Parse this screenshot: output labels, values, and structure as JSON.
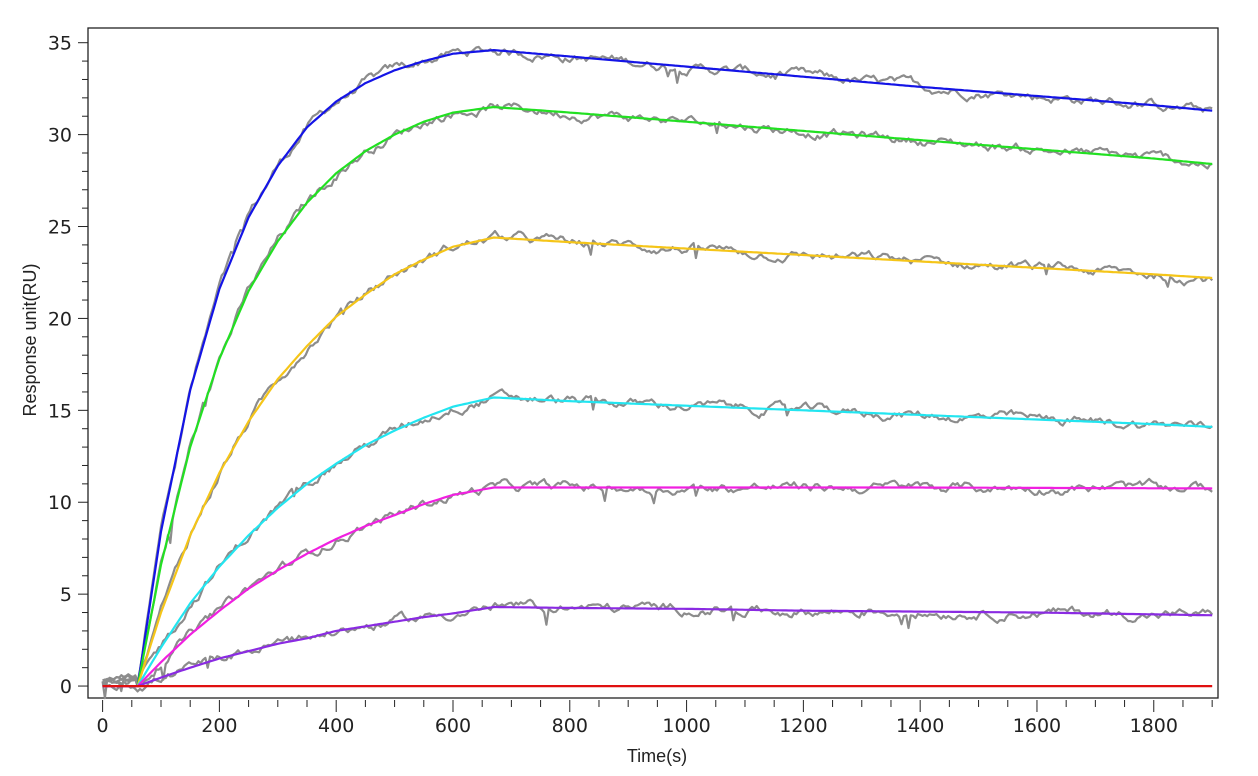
{
  "chart_data": {
    "type": "line",
    "title": "",
    "xlabel": "Time(s)",
    "ylabel": "Response unit(RU)",
    "xlim": [
      -25,
      1910
    ],
    "ylim": [
      -0.65,
      35.8
    ],
    "xticks": [
      0,
      200,
      400,
      600,
      800,
      1000,
      1200,
      1400,
      1600,
      1800
    ],
    "yticks": [
      0,
      5,
      10,
      15,
      20,
      25,
      30,
      35
    ],
    "grid": false,
    "legend": "none",
    "x": [
      0,
      60,
      100,
      150,
      200,
      250,
      300,
      350,
      400,
      450,
      500,
      550,
      600,
      670,
      800,
      1000,
      1200,
      1400,
      1600,
      1800,
      1900
    ],
    "observed_color": "#8c8c8c",
    "series": [
      {
        "color": "#1414e6",
        "values": [
          0,
          0,
          8.4,
          16.1,
          21.6,
          25.5,
          28.3,
          30.4,
          31.8,
          32.8,
          33.5,
          34.0,
          34.4,
          34.6,
          34.25,
          33.7,
          33.15,
          32.6,
          32.1,
          31.6,
          31.3
        ]
      },
      {
        "color": "#22e022",
        "values": [
          0,
          0,
          6.6,
          13.0,
          17.8,
          21.5,
          24.2,
          26.3,
          27.9,
          29.1,
          30.0,
          30.7,
          31.2,
          31.5,
          31.2,
          30.7,
          30.2,
          29.7,
          29.2,
          28.7,
          28.4
        ]
      },
      {
        "color": "#f5c518",
        "values": [
          0,
          0,
          4.0,
          8.2,
          11.6,
          14.4,
          16.7,
          18.5,
          20.1,
          21.3,
          22.4,
          23.2,
          23.9,
          24.4,
          24.15,
          23.8,
          23.45,
          23.1,
          22.75,
          22.4,
          22.2
        ]
      },
      {
        "color": "#22e5f0",
        "values": [
          0,
          0,
          2.1,
          4.5,
          6.5,
          8.2,
          9.7,
          11.0,
          12.1,
          13.1,
          13.9,
          14.6,
          15.2,
          15.7,
          15.5,
          15.25,
          15.0,
          14.75,
          14.5,
          14.25,
          14.1
        ]
      },
      {
        "color": "#f020e0",
        "values": [
          0,
          0,
          1.3,
          2.8,
          4.1,
          5.3,
          6.3,
          7.2,
          8.0,
          8.7,
          9.3,
          9.9,
          10.4,
          10.8,
          10.8,
          10.8,
          10.8,
          10.8,
          10.78,
          10.76,
          10.75
        ]
      },
      {
        "color": "#8a2be2",
        "values": [
          0,
          0,
          0.46,
          1.0,
          1.5,
          1.9,
          2.3,
          2.6,
          3.0,
          3.25,
          3.5,
          3.75,
          3.95,
          4.3,
          4.25,
          4.2,
          4.1,
          4.05,
          4.0,
          3.9,
          3.85
        ]
      },
      {
        "color": "#e01010",
        "values": [
          0,
          0,
          0,
          0,
          0,
          0,
          0,
          0,
          0,
          0,
          0,
          0,
          0,
          0,
          0,
          0,
          0,
          0,
          0,
          0,
          0
        ]
      }
    ]
  }
}
